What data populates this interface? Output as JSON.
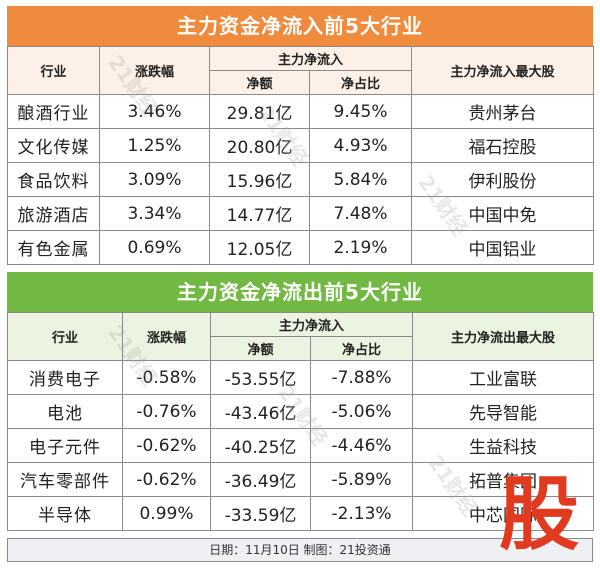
{
  "inflow": {
    "title": "主力资金净流入前5大行业",
    "headers": {
      "industry": "行业",
      "change": "涨跌幅",
      "group": "主力净流入",
      "amount": "净额",
      "ratio": "净占比",
      "top_stock": "主力净流入最大股"
    },
    "rows": [
      {
        "industry": "酿酒行业",
        "change": "3.46%",
        "amount": "29.81亿",
        "ratio": "9.45%",
        "stock": "贵州茅台"
      },
      {
        "industry": "文化传媒",
        "change": "1.25%",
        "amount": "20.80亿",
        "ratio": "4.93%",
        "stock": "福石控股"
      },
      {
        "industry": "食品饮料",
        "change": "3.09%",
        "amount": "15.96亿",
        "ratio": "5.84%",
        "stock": "伊利股份"
      },
      {
        "industry": "旅游酒店",
        "change": "3.34%",
        "amount": "14.77亿",
        "ratio": "7.48%",
        "stock": "中国中免"
      },
      {
        "industry": "有色金属",
        "change": "0.69%",
        "amount": "12.05亿",
        "ratio": "2.19%",
        "stock": "中国铝业"
      }
    ]
  },
  "outflow": {
    "title": "主力资金净流出前5大行业",
    "headers": {
      "industry": "行业",
      "change": "涨跌幅",
      "group": "主力净流入",
      "amount": "净额",
      "ratio": "净占比",
      "top_stock": "主力净流出最大股"
    },
    "rows": [
      {
        "industry": "消费电子",
        "change": "-0.58%",
        "amount": "-53.55亿",
        "ratio": "-7.88%",
        "stock": "工业富联"
      },
      {
        "industry": "电池",
        "change": "-0.76%",
        "amount": "-43.46亿",
        "ratio": "-5.06%",
        "stock": "先导智能"
      },
      {
        "industry": "电子元件",
        "change": "-0.62%",
        "amount": "-40.25亿",
        "ratio": "-4.46%",
        "stock": "生益科技"
      },
      {
        "industry": "汽车零部件",
        "change": "-0.62%",
        "amount": "-36.49亿",
        "ratio": "-5.89%",
        "stock": "拓普集团"
      },
      {
        "industry": "半导体",
        "change": "0.99%",
        "amount": "-33.59亿",
        "ratio": "-2.13%",
        "stock": "中芯国际"
      }
    ]
  },
  "footer": "日期：11月10日 制图：21投资通",
  "stamp": "股",
  "watermark": "21财经",
  "colors": {
    "inflow_header": "#f08a3c",
    "outflow_header": "#72b944",
    "stamp": "#e23a1e"
  }
}
